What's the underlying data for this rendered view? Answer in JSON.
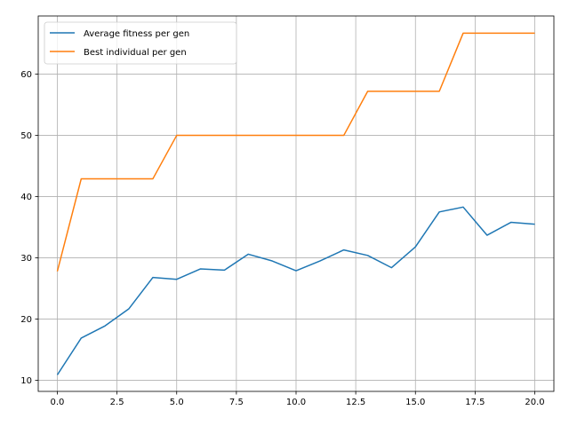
{
  "chart_data": {
    "type": "line",
    "title": "",
    "xlabel": "",
    "ylabel": "",
    "x": [
      0,
      1,
      2,
      3,
      4,
      5,
      6,
      7,
      8,
      9,
      10,
      11,
      12,
      13,
      14,
      15,
      16,
      17,
      18,
      19,
      20
    ],
    "xlim": [
      -0.8,
      20.8
    ],
    "ylim": [
      8.2,
      69.5
    ],
    "xticks": [
      0.0,
      2.5,
      5.0,
      7.5,
      10.0,
      12.5,
      15.0,
      17.5,
      20.0
    ],
    "xtick_labels": [
      "0.0",
      "2.5",
      "5.0",
      "7.5",
      "10.0",
      "12.5",
      "15.0",
      "17.5",
      "20.0"
    ],
    "yticks": [
      10,
      20,
      30,
      40,
      50,
      60
    ],
    "ytick_labels": [
      "10",
      "20",
      "30",
      "40",
      "50",
      "60"
    ],
    "grid": true,
    "legend_position": "upper-left",
    "series": [
      {
        "name": "Average fitness per gen",
        "color": "#1f77b4",
        "values": [
          10.9,
          16.9,
          18.9,
          21.7,
          26.8,
          26.5,
          28.2,
          28.0,
          30.6,
          29.5,
          27.9,
          29.5,
          31.3,
          30.4,
          28.4,
          31.8,
          37.5,
          38.3,
          33.7,
          35.8,
          35.5
        ]
      },
      {
        "name": "Best individual per gen",
        "color": "#ff7f0e",
        "values": [
          27.8,
          42.9,
          42.9,
          42.9,
          42.9,
          50.0,
          50.0,
          50.0,
          50.0,
          50.0,
          50.0,
          50.0,
          50.0,
          57.2,
          57.2,
          57.2,
          57.2,
          66.7,
          66.7,
          66.7,
          66.7
        ]
      }
    ]
  }
}
